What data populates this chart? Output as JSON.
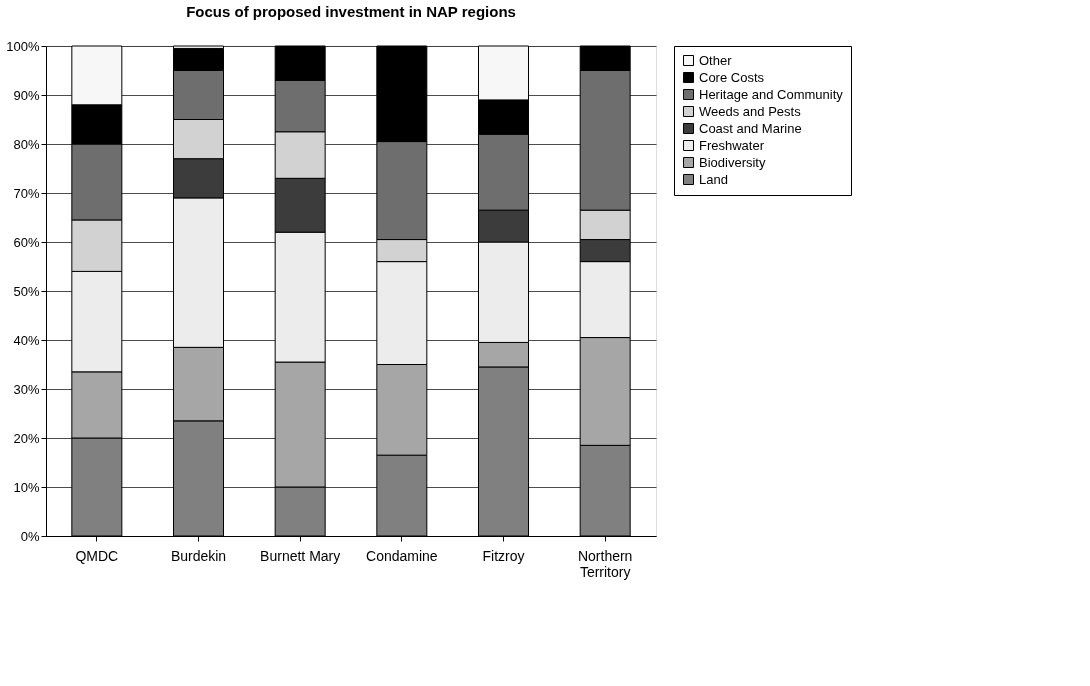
{
  "chart_data": {
    "type": "bar",
    "stacked": true,
    "title": "Focus of proposed investment in NAP regions",
    "categories": [
      "QMDC",
      "Burdekin",
      "Burnett Mary",
      "Condamine",
      "Fitzroy",
      "Northern Territory"
    ],
    "series": [
      {
        "name": "Land",
        "color": "#808080",
        "values": [
          20,
          23.5,
          10,
          16.5,
          34.5,
          18.5
        ]
      },
      {
        "name": "Biodiversity",
        "color": "#a6a6a6",
        "values": [
          13.5,
          15,
          25.5,
          18.5,
          5,
          22
        ]
      },
      {
        "name": "Freshwater",
        "color": "#ececec",
        "values": [
          20.5,
          30.5,
          26.5,
          21,
          20.5,
          15.5
        ]
      },
      {
        "name": "Coast and Marine",
        "color": "#3c3c3c",
        "values": [
          0,
          8,
          11,
          0,
          6.5,
          4.5
        ]
      },
      {
        "name": "Weeds and Pests",
        "color": "#d2d2d2",
        "values": [
          10.5,
          8,
          9.5,
          4.5,
          0,
          6
        ]
      },
      {
        "name": "Heritage and Community",
        "color": "#6e6e6e",
        "values": [
          15.5,
          10,
          10.5,
          20,
          15.5,
          28.5
        ]
      },
      {
        "name": "Core Costs",
        "color": "#000000",
        "values": [
          8,
          4.5,
          7,
          19.5,
          7,
          5
        ]
      },
      {
        "name": "Other",
        "color": "#f7f7f7",
        "values": [
          12,
          0.5,
          0,
          0,
          11,
          0
        ]
      }
    ],
    "ylim": [
      0,
      100
    ],
    "yticks": [
      {
        "value": 0,
        "label": "0%"
      },
      {
        "value": 10,
        "label": "10%"
      },
      {
        "value": 20,
        "label": "20%"
      },
      {
        "value": 30,
        "label": "30%"
      },
      {
        "value": 40,
        "label": "40%"
      },
      {
        "value": 50,
        "label": "50%"
      },
      {
        "value": 60,
        "label": "60%"
      },
      {
        "value": 70,
        "label": "70%"
      },
      {
        "value": 80,
        "label": "80%"
      },
      {
        "value": 90,
        "label": "90%"
      },
      {
        "value": 100,
        "label": "100%"
      }
    ],
    "grid": "y",
    "legend": "right"
  }
}
